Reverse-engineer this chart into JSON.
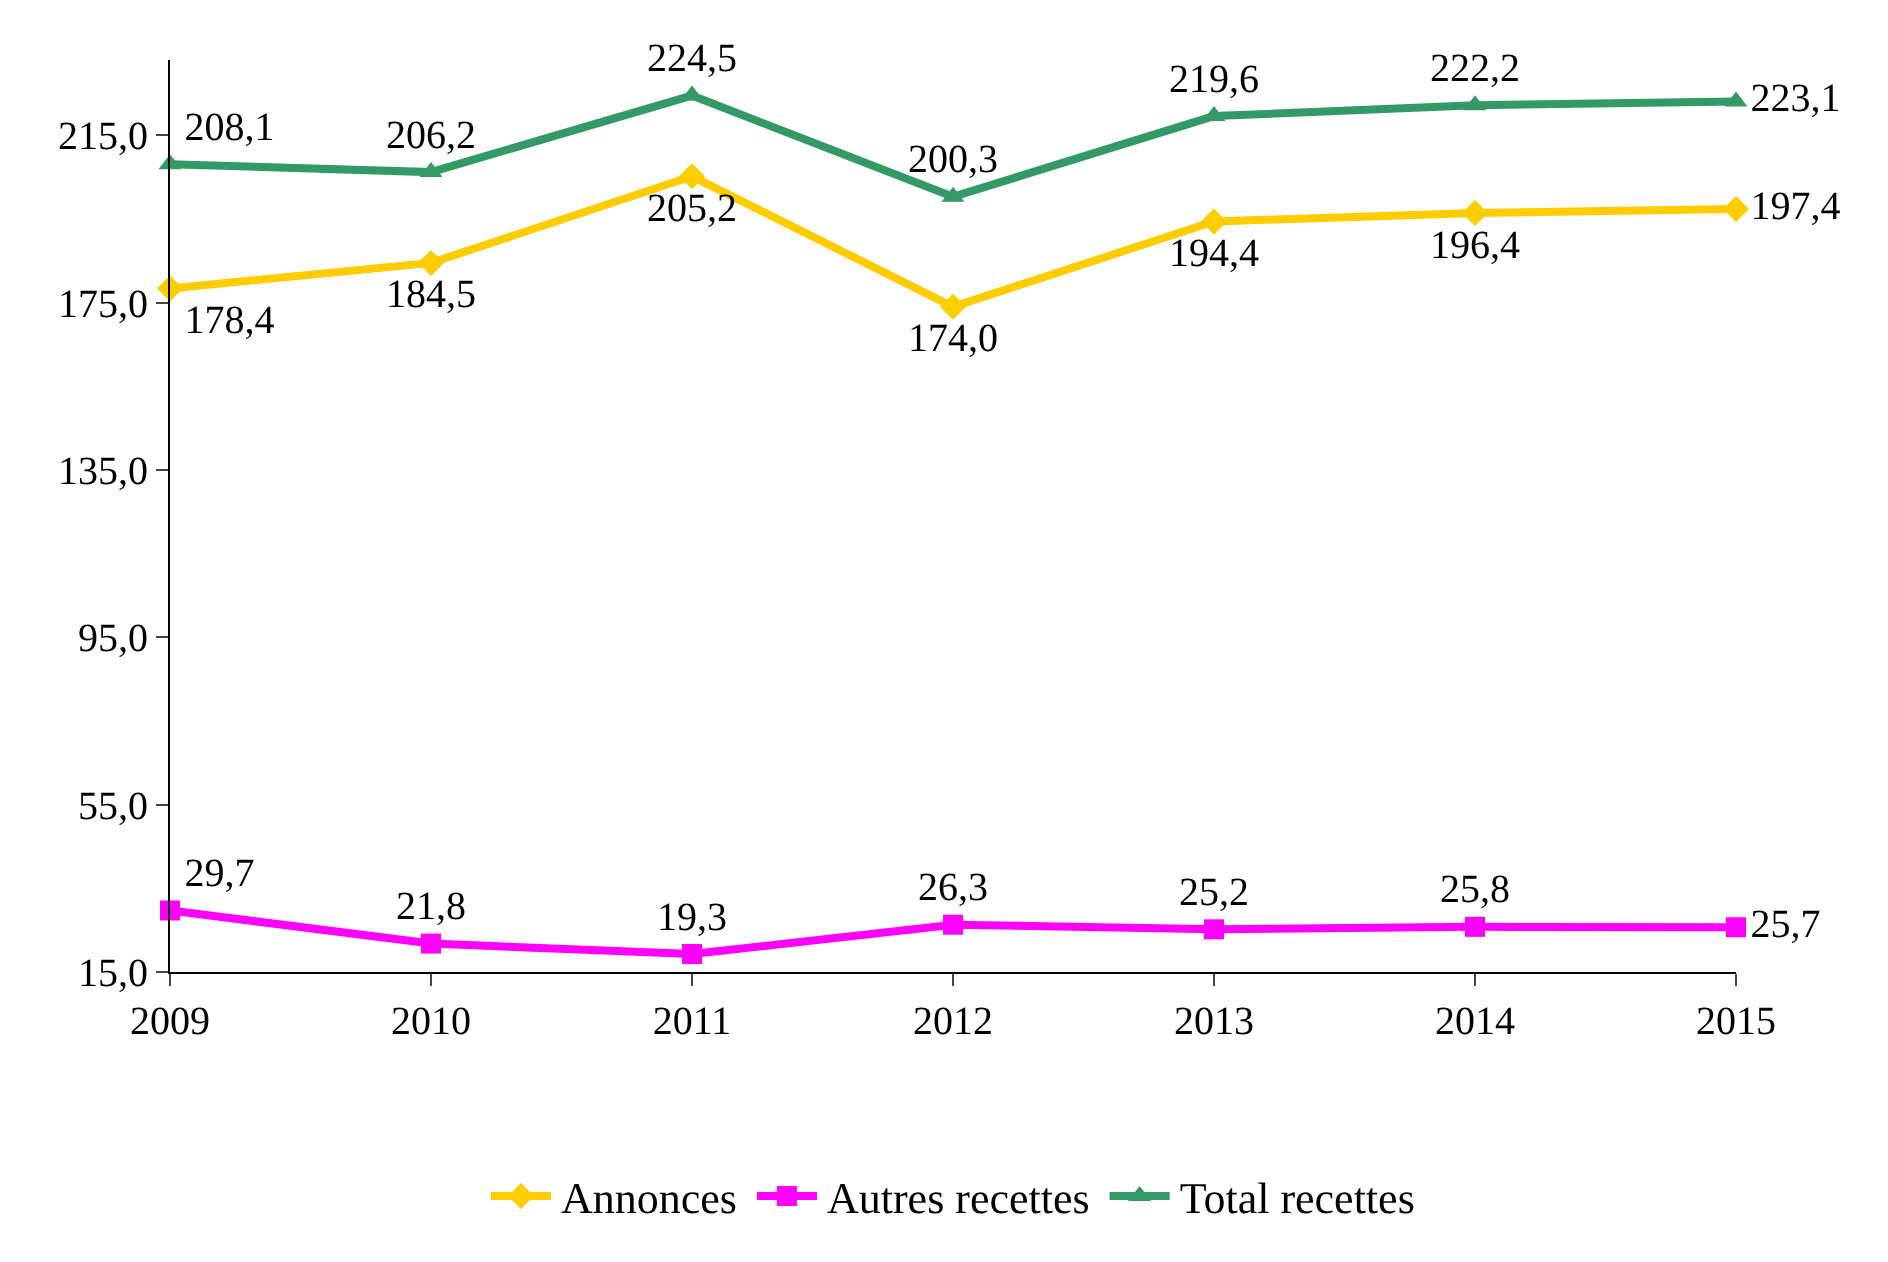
{
  "chart_data": {
    "type": "line",
    "x": [
      2009,
      2010,
      2011,
      2012,
      2013,
      2014,
      2015
    ],
    "xlim": [
      2009,
      2015
    ],
    "xticks": [
      2009,
      2010,
      2011,
      2012,
      2013,
      2014,
      2015
    ],
    "ylim": [
      15,
      233
    ],
    "yticks": [
      {
        "value": 15,
        "label": "15,0"
      },
      {
        "value": 55,
        "label": "55,0"
      },
      {
        "value": 95,
        "label": "95,0"
      },
      {
        "value": 135,
        "label": "135,0"
      },
      {
        "value": 175,
        "label": "175,0"
      },
      {
        "value": 215,
        "label": "215,0"
      }
    ],
    "series": [
      {
        "name": "Annonces",
        "color": "#ffcc00",
        "marker": "diamond",
        "values": [
          178.4,
          184.5,
          205.2,
          174.0,
          194.4,
          196.4,
          197.4
        ],
        "value_labels": [
          "178,4",
          "184,5",
          "205,2",
          "174,0",
          "194,4",
          "196,4",
          "197,4"
        ]
      },
      {
        "name": "Autres recettes",
        "color": "#ff00ff",
        "marker": "square",
        "values": [
          29.7,
          21.8,
          19.3,
          26.3,
          25.2,
          25.8,
          25.7
        ],
        "value_labels": [
          "29,7",
          "21,8",
          "19,3",
          "26,3",
          "25,2",
          "25,8",
          "25,7"
        ]
      },
      {
        "name": "Total recettes",
        "color": "#339966",
        "marker": "triangle",
        "values": [
          208.1,
          206.2,
          224.5,
          200.3,
          219.6,
          222.2,
          223.1
        ],
        "value_labels": [
          "208,1",
          "206,2",
          "224,5",
          "200,3",
          "219,6",
          "222,2",
          "223,1"
        ]
      }
    ],
    "legend": "bottom",
    "line_style": "solid"
  }
}
